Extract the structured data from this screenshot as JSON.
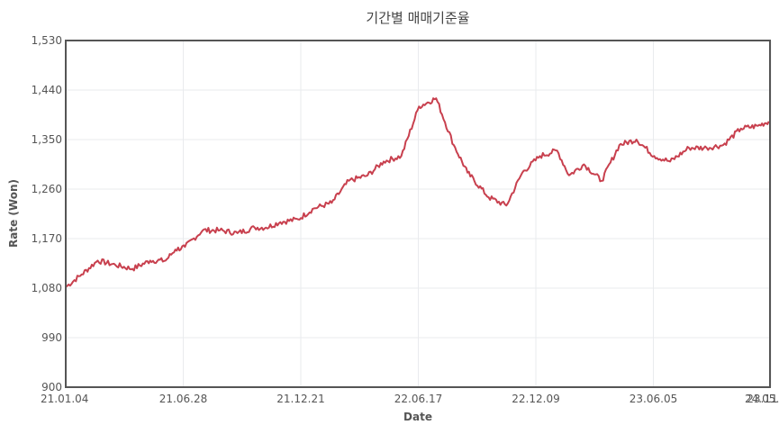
{
  "chart_data": {
    "type": "line",
    "title": "기간별 매매기준율",
    "xlabel": "Date",
    "ylabel": "Rate (Won)",
    "ylim": [
      900,
      1530
    ],
    "yticks": [
      "900",
      "990",
      "1,080",
      "1,170",
      "1,260",
      "1,350",
      "1,440",
      "1,530"
    ],
    "xticks": [
      "21.01.04",
      "21.06.28",
      "21.12.21",
      "22.06.17",
      "22.12.09",
      "23.06.05",
      "23.11.29",
      "24.05.2"
    ],
    "grid": true,
    "line_color": "#c8404e",
    "series": [
      {
        "x": [
          "2021-01-04",
          "2021-02-01",
          "2021-03-01",
          "2021-04-01",
          "2021-05-01",
          "2021-06-01",
          "2021-06-28",
          "2021-07-15",
          "2021-08-01",
          "2021-09-01",
          "2021-10-01",
          "2021-11-01",
          "2021-12-01",
          "2021-12-21",
          "2022-01-15",
          "2022-02-15",
          "2022-03-15",
          "2022-04-15",
          "2022-05-15",
          "2022-06-17",
          "2022-07-15",
          "2022-08-15",
          "2022-09-15",
          "2022-10-15",
          "2022-11-15",
          "2022-12-09",
          "2023-01-15",
          "2023-02-15",
          "2023-03-15",
          "2023-04-15",
          "2023-05-15",
          "2023-06-05",
          "2023-07-01",
          "2023-08-01",
          "2023-09-01",
          "2023-10-01",
          "2023-11-01",
          "2023-11-29",
          "2024-01-01",
          "2024-02-01",
          "2024-03-01",
          "2024-04-01",
          "2024-05-01",
          "2024-05-20"
        ],
        "values": [
          1082,
          1105,
          1130,
          1122,
          1115,
          1130,
          1130,
          1150,
          1155,
          1185,
          1185,
          1180,
          1190,
          1190,
          1200,
          1205,
          1225,
          1235,
          1275,
          1285,
          1310,
          1320,
          1410,
          1425,
          1340,
          1290,
          1245,
          1230,
          1290,
          1320,
          1330,
          1285,
          1305,
          1275,
          1340,
          1350,
          1320,
          1310,
          1335,
          1335,
          1340,
          1370,
          1375,
          1383
        ]
      }
    ]
  }
}
